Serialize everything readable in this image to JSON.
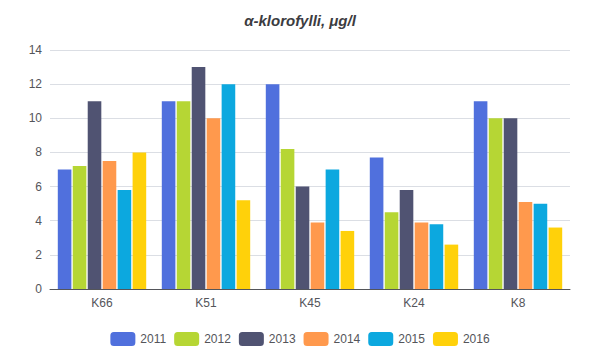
{
  "chart_data": {
    "type": "bar",
    "title": "α-klorofylli, μg/l",
    "categories": [
      "K66",
      "K51",
      "K45",
      "K24",
      "K8"
    ],
    "series": [
      {
        "name": "2011",
        "values": [
          7.0,
          11.0,
          12.0,
          7.7,
          11.0
        ]
      },
      {
        "name": "2012",
        "values": [
          7.2,
          11.0,
          8.2,
          4.5,
          10.0
        ]
      },
      {
        "name": "2013",
        "values": [
          11.0,
          13.0,
          6.0,
          5.8,
          10.0
        ]
      },
      {
        "name": "2014",
        "values": [
          7.5,
          10.0,
          3.9,
          3.9,
          5.1
        ]
      },
      {
        "name": "2015",
        "values": [
          5.8,
          12.0,
          7.0,
          3.8,
          5.0
        ]
      },
      {
        "name": "2016",
        "values": [
          8.0,
          5.2,
          3.4,
          2.6,
          3.6
        ]
      }
    ],
    "ylim": [
      0,
      14
    ],
    "yticks": [
      0,
      2,
      4,
      6,
      8,
      10,
      12,
      14
    ],
    "grid": true,
    "legend": "bottom"
  }
}
